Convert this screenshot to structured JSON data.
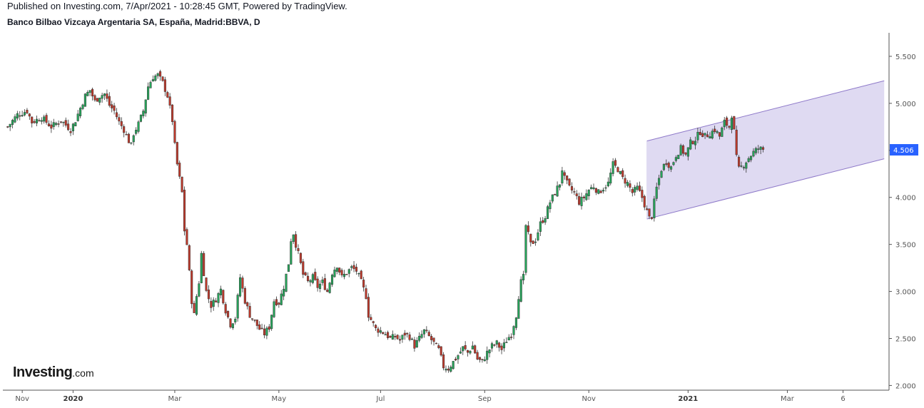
{
  "header": {
    "published": "Published on Investing.com, 7/Apr/2021 - 10:28:45 GMT, Powered by TradingView.",
    "title": "Banco Bilbao Vizcaya Argentaria SA, España, Madrid:BBVA, D"
  },
  "logo": {
    "main": "Investing",
    "suffix": ".com"
  },
  "colors": {
    "up": "#26a65b",
    "down": "#c0392b",
    "channel_fill": "#d9d3f0",
    "channel_line": "#8e79c9",
    "last_bg": "#2962ff"
  },
  "chart_data": {
    "type": "candlestick",
    "title": "Banco Bilbao Vizcaya Argentaria SA, España, Madrid:BBVA, D",
    "ylim": [
      1.95,
      5.75
    ],
    "y_ticks": [
      "5.500",
      "5.000",
      "4.500",
      "4.000",
      "3.500",
      "3.000",
      "2.500",
      "2.000"
    ],
    "y_tick_values": [
      5.5,
      5.0,
      4.5,
      4.0,
      3.5,
      3.0,
      2.5,
      2.0
    ],
    "last_price": "4.506",
    "last_value": 4.506,
    "x_ticks": [
      {
        "label": "Nov",
        "bold": false,
        "t": 6
      },
      {
        "label": "2020",
        "bold": true,
        "t": 27
      },
      {
        "label": "Mar",
        "bold": false,
        "t": 69
      },
      {
        "label": "May",
        "bold": false,
        "t": 112
      },
      {
        "label": "Jul",
        "bold": false,
        "t": 154
      },
      {
        "label": "Sep",
        "bold": false,
        "t": 197
      },
      {
        "label": "Nov",
        "bold": false,
        "t": 240
      },
      {
        "label": "2021",
        "bold": true,
        "t": 281
      },
      {
        "label": "Mar",
        "bold": false,
        "t": 322
      },
      {
        "label": "6",
        "bold": false,
        "t": 345
      }
    ],
    "x_range": [
      -2,
      364
    ],
    "price_path": [
      [
        0,
        4.75
      ],
      [
        4,
        4.88
      ],
      [
        8,
        4.92
      ],
      [
        10,
        4.8
      ],
      [
        14,
        4.85
      ],
      [
        18,
        4.75
      ],
      [
        22,
        4.82
      ],
      [
        26,
        4.72
      ],
      [
        28,
        4.82
      ],
      [
        30,
        4.95
      ],
      [
        32,
        5.08
      ],
      [
        34,
        5.14
      ],
      [
        36,
        5.02
      ],
      [
        38,
        5.08
      ],
      [
        40,
        5.1
      ],
      [
        42,
        4.98
      ],
      [
        44,
        4.92
      ],
      [
        46,
        4.8
      ],
      [
        48,
        4.72
      ],
      [
        50,
        4.6
      ],
      [
        51,
        4.55
      ],
      [
        52,
        4.68
      ],
      [
        54,
        4.78
      ],
      [
        56,
        4.92
      ],
      [
        58,
        5.18
      ],
      [
        60,
        5.28
      ],
      [
        62,
        5.3
      ],
      [
        64,
        5.22
      ],
      [
        66,
        5.08
      ],
      [
        68,
        4.82
      ],
      [
        69,
        4.55
      ],
      [
        70,
        4.35
      ],
      [
        71,
        4.2
      ],
      [
        72,
        4.05
      ],
      [
        73,
        3.65
      ],
      [
        74,
        3.5
      ],
      [
        75,
        3.2
      ],
      [
        76,
        2.9
      ],
      [
        77,
        2.75
      ],
      [
        78,
        2.95
      ],
      [
        79,
        3.1
      ],
      [
        80,
        3.4
      ],
      [
        81,
        3.2
      ],
      [
        82,
        3.0
      ],
      [
        84,
        2.85
      ],
      [
        86,
        2.92
      ],
      [
        88,
        3.02
      ],
      [
        90,
        2.8
      ],
      [
        92,
        2.65
      ],
      [
        94,
        2.72
      ],
      [
        96,
        3.15
      ],
      [
        98,
        2.9
      ],
      [
        100,
        2.75
      ],
      [
        102,
        2.68
      ],
      [
        104,
        2.6
      ],
      [
        106,
        2.55
      ],
      [
        108,
        2.62
      ],
      [
        110,
        2.9
      ],
      [
        112,
        2.88
      ],
      [
        114,
        3.05
      ],
      [
        116,
        3.3
      ],
      [
        117,
        3.55
      ],
      [
        118,
        3.62
      ],
      [
        119,
        3.5
      ],
      [
        120,
        3.4
      ],
      [
        122,
        3.18
      ],
      [
        124,
        3.1
      ],
      [
        126,
        3.15
      ],
      [
        128,
        3.05
      ],
      [
        130,
        3.1
      ],
      [
        132,
        3.0
      ],
      [
        134,
        3.2
      ],
      [
        136,
        3.28
      ],
      [
        138,
        3.15
      ],
      [
        140,
        3.2
      ],
      [
        142,
        3.25
      ],
      [
        144,
        3.22
      ],
      [
        146,
        3.1
      ],
      [
        148,
        2.95
      ],
      [
        149,
        2.75
      ],
      [
        150,
        2.7
      ],
      [
        152,
        2.6
      ],
      [
        154,
        2.58
      ],
      [
        156,
        2.55
      ],
      [
        158,
        2.5
      ],
      [
        160,
        2.52
      ],
      [
        162,
        2.48
      ],
      [
        164,
        2.55
      ],
      [
        166,
        2.52
      ],
      [
        168,
        2.42
      ],
      [
        170,
        2.5
      ],
      [
        172,
        2.58
      ],
      [
        174,
        2.52
      ],
      [
        176,
        2.45
      ],
      [
        178,
        2.38
      ],
      [
        180,
        2.2
      ],
      [
        182,
        2.18
      ],
      [
        184,
        2.25
      ],
      [
        186,
        2.32
      ],
      [
        188,
        2.4
      ],
      [
        190,
        2.35
      ],
      [
        192,
        2.42
      ],
      [
        194,
        2.28
      ],
      [
        196,
        2.25
      ],
      [
        198,
        2.35
      ],
      [
        200,
        2.42
      ],
      [
        202,
        2.45
      ],
      [
        204,
        2.38
      ],
      [
        206,
        2.48
      ],
      [
        208,
        2.55
      ],
      [
        210,
        2.75
      ],
      [
        211,
        2.95
      ],
      [
        212,
        3.1
      ],
      [
        213,
        3.15
      ],
      [
        214,
        3.7
      ],
      [
        215,
        3.6
      ],
      [
        216,
        3.5
      ],
      [
        218,
        3.55
      ],
      [
        220,
        3.72
      ],
      [
        222,
        3.8
      ],
      [
        224,
        3.95
      ],
      [
        226,
        4.05
      ],
      [
        228,
        4.15
      ],
      [
        229,
        4.3
      ],
      [
        230,
        4.2
      ],
      [
        232,
        4.1
      ],
      [
        234,
        4.05
      ],
      [
        236,
        3.95
      ],
      [
        238,
        4.0
      ],
      [
        240,
        4.08
      ],
      [
        242,
        4.12
      ],
      [
        244,
        4.05
      ],
      [
        246,
        4.1
      ],
      [
        248,
        4.15
      ],
      [
        250,
        4.35
      ],
      [
        252,
        4.3
      ],
      [
        254,
        4.2
      ],
      [
        256,
        4.15
      ],
      [
        258,
        4.05
      ],
      [
        260,
        4.1
      ],
      [
        262,
        4.0
      ],
      [
        264,
        3.85
      ],
      [
        265,
        3.78
      ],
      [
        266,
        3.8
      ],
      [
        268,
        4.1
      ],
      [
        270,
        4.3
      ],
      [
        272,
        4.38
      ],
      [
        274,
        4.32
      ],
      [
        276,
        4.45
      ],
      [
        278,
        4.52
      ],
      [
        280,
        4.45
      ],
      [
        282,
        4.58
      ],
      [
        284,
        4.62
      ],
      [
        286,
        4.7
      ],
      [
        288,
        4.65
      ],
      [
        290,
        4.68
      ],
      [
        292,
        4.72
      ],
      [
        294,
        4.65
      ],
      [
        296,
        4.8
      ],
      [
        298,
        4.75
      ],
      [
        299,
        4.88
      ],
      [
        300,
        4.7
      ],
      [
        301,
        4.42
      ],
      [
        302,
        4.3
      ],
      [
        304,
        4.35
      ],
      [
        306,
        4.42
      ],
      [
        308,
        4.48
      ],
      [
        310,
        4.52
      ],
      [
        312,
        4.51
      ]
    ],
    "channel": {
      "upper": [
        [
          264,
          4.6
        ],
        [
          362,
          5.24
        ]
      ],
      "lower": [
        [
          264,
          3.77
        ],
        [
          362,
          4.41
        ]
      ]
    }
  }
}
